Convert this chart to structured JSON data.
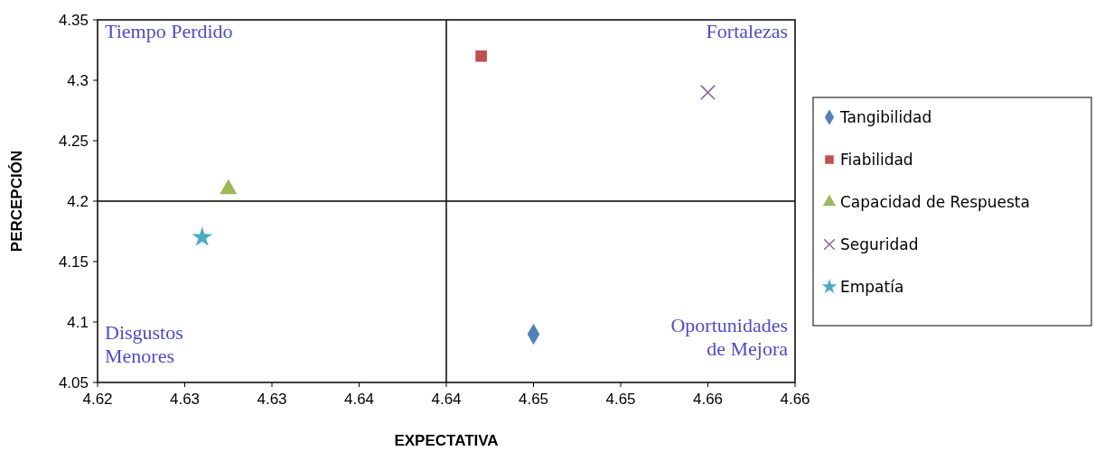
{
  "chart_data": {
    "type": "scatter",
    "xlabel": "EXPECTATIVA",
    "ylabel": "PERCEPCIÓN",
    "xlim": [
      4.62,
      4.66
    ],
    "ylim": [
      4.05,
      4.35
    ],
    "xticks": [
      4.62,
      {
        "value": 4.625,
        "label": "4.63"
      },
      4.63,
      {
        "value": 4.635,
        "label": "4.64"
      },
      4.64,
      {
        "value": 4.645,
        "label": "4.65"
      },
      4.65,
      {
        "value": 4.655,
        "label": "4.66"
      },
      4.66
    ],
    "yticks": [
      4.05,
      4.1,
      4.15,
      4.2,
      4.25,
      4.3,
      4.35
    ],
    "grid": false,
    "legend": "right",
    "ref_lines": [
      {
        "axis": "x",
        "value": 4.64,
        "color": "#000000"
      },
      {
        "axis": "y",
        "value": 4.2,
        "color": "#000000"
      }
    ],
    "annotations": [
      "Tiempo Perdido",
      "Fortalezas",
      "Disgustos\nMenores",
      "Oportunidades\nde Mejora"
    ],
    "series": [
      {
        "name": "Tangibilidad",
        "color": "#4f81bd",
        "marker": "diamond",
        "x": [
          4.645
        ],
        "values": [
          4.09
        ]
      },
      {
        "name": "Fiabilidad",
        "color": "#c0504d",
        "marker": "square",
        "x": [
          4.642
        ],
        "values": [
          4.32
        ]
      },
      {
        "name": "Capacidad de Respuesta",
        "color": "#9bbb59",
        "marker": "triangle",
        "x": [
          4.6275
        ],
        "values": [
          4.21
        ]
      },
      {
        "name": "Seguridad",
        "color": "#8064a2",
        "marker": "cross",
        "x": [
          4.655
        ],
        "values": [
          4.29
        ]
      },
      {
        "name": "Empatía",
        "color": "#4bacc6",
        "marker": "star",
        "x": [
          4.626
        ],
        "values": [
          4.17
        ]
      }
    ]
  }
}
